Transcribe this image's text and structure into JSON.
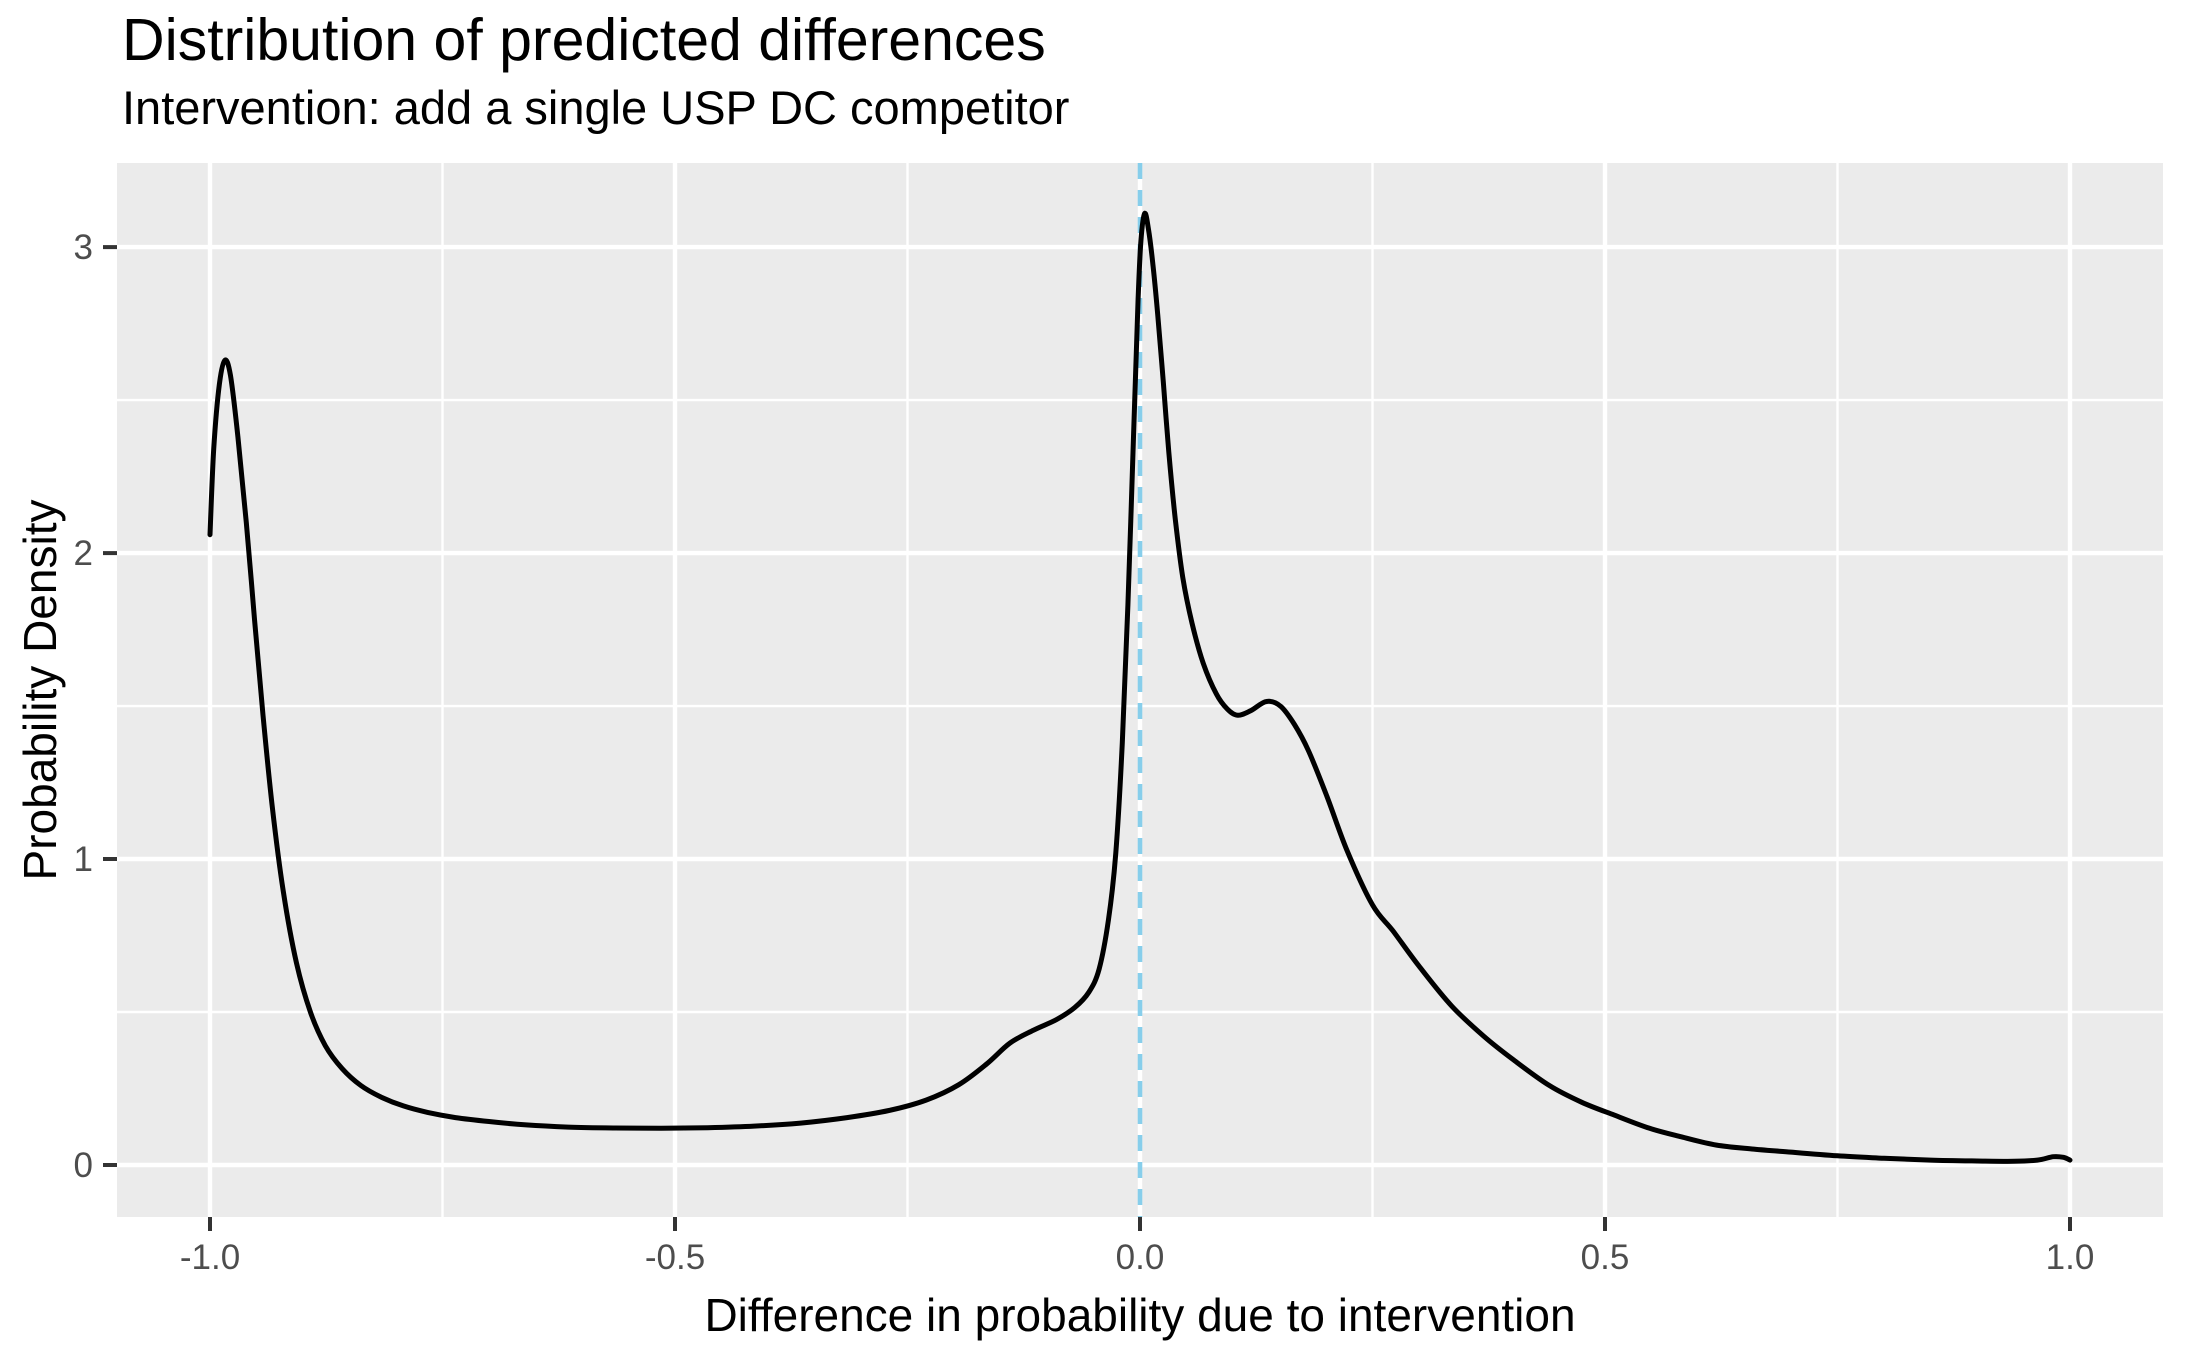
{
  "chart_data": {
    "type": "line",
    "title": "Distribution of predicted differences",
    "subtitle": "Intervention: add a single USP DC competitor",
    "xlabel": "Difference in probability due to intervention",
    "ylabel": "Probability Density",
    "xlim": [
      -1.1,
      1.1
    ],
    "ylim": [
      -0.17,
      3.275
    ],
    "grid": "on",
    "legend": "none",
    "x_ticks": {
      "values": [
        -1.0,
        -0.5,
        0.0,
        0.5,
        1.0
      ],
      "labels": [
        "-1.0",
        "-0.5",
        "0.0",
        "0.5",
        "1.0"
      ]
    },
    "y_ticks": {
      "values": [
        0,
        1,
        2,
        3
      ],
      "labels": [
        "0",
        "1",
        "2",
        "3"
      ]
    },
    "x_minor_gridlines": [
      -0.75,
      -0.25,
      0.25,
      0.75
    ],
    "y_minor_gridlines": [
      0.5,
      1.5,
      2.5
    ],
    "vline": {
      "x": 0.0,
      "style": "dashed",
      "color": "#87CEEB"
    },
    "series": [
      {
        "name": "density",
        "color": "#000000",
        "points": [
          [
            -1.0,
            2.06
          ],
          [
            -0.996,
            2.34
          ],
          [
            -0.99,
            2.55
          ],
          [
            -0.984,
            2.63
          ],
          [
            -0.978,
            2.58
          ],
          [
            -0.97,
            2.38
          ],
          [
            -0.961,
            2.1
          ],
          [
            -0.952,
            1.78
          ],
          [
            -0.943,
            1.47
          ],
          [
            -0.933,
            1.17
          ],
          [
            -0.921,
            0.89
          ],
          [
            -0.907,
            0.66
          ],
          [
            -0.892,
            0.5
          ],
          [
            -0.876,
            0.39
          ],
          [
            -0.858,
            0.315
          ],
          [
            -0.838,
            0.26
          ],
          [
            -0.816,
            0.222
          ],
          [
            -0.792,
            0.193
          ],
          [
            -0.766,
            0.172
          ],
          [
            -0.736,
            0.155
          ],
          [
            -0.7,
            0.142
          ],
          [
            -0.66,
            0.131
          ],
          [
            -0.615,
            0.124
          ],
          [
            -0.565,
            0.121
          ],
          [
            -0.515,
            0.12
          ],
          [
            -0.465,
            0.122
          ],
          [
            -0.415,
            0.127
          ],
          [
            -0.365,
            0.137
          ],
          [
            -0.315,
            0.155
          ],
          [
            -0.27,
            0.178
          ],
          [
            -0.23,
            0.212
          ],
          [
            -0.195,
            0.262
          ],
          [
            -0.165,
            0.33
          ],
          [
            -0.14,
            0.398
          ],
          [
            -0.115,
            0.44
          ],
          [
            -0.09,
            0.475
          ],
          [
            -0.07,
            0.515
          ],
          [
            -0.055,
            0.565
          ],
          [
            -0.044,
            0.64
          ],
          [
            -0.034,
            0.8
          ],
          [
            -0.026,
            1.02
          ],
          [
            -0.019,
            1.38
          ],
          [
            -0.013,
            1.83
          ],
          [
            -0.007,
            2.38
          ],
          [
            -0.002,
            2.83
          ],
          [
            0.001,
            3.02
          ],
          [
            0.005,
            3.11
          ],
          [
            0.009,
            3.06
          ],
          [
            0.014,
            2.94
          ],
          [
            0.019,
            2.78
          ],
          [
            0.025,
            2.56
          ],
          [
            0.031,
            2.33
          ],
          [
            0.038,
            2.11
          ],
          [
            0.046,
            1.92
          ],
          [
            0.056,
            1.77
          ],
          [
            0.068,
            1.64
          ],
          [
            0.082,
            1.54
          ],
          [
            0.094,
            1.49
          ],
          [
            0.105,
            1.47
          ],
          [
            0.119,
            1.485
          ],
          [
            0.136,
            1.515
          ],
          [
            0.151,
            1.5
          ],
          [
            0.166,
            1.44
          ],
          [
            0.181,
            1.355
          ],
          [
            0.201,
            1.205
          ],
          [
            0.223,
            1.025
          ],
          [
            0.25,
            0.85
          ],
          [
            0.272,
            0.765
          ],
          [
            0.3,
            0.65
          ],
          [
            0.335,
            0.52
          ],
          [
            0.37,
            0.42
          ],
          [
            0.401,
            0.345
          ],
          [
            0.44,
            0.26
          ],
          [
            0.475,
            0.205
          ],
          [
            0.51,
            0.163
          ],
          [
            0.548,
            0.12
          ],
          [
            0.582,
            0.092
          ],
          [
            0.62,
            0.065
          ],
          [
            0.66,
            0.052
          ],
          [
            0.7,
            0.042
          ],
          [
            0.75,
            0.03
          ],
          [
            0.8,
            0.022
          ],
          [
            0.85,
            0.016
          ],
          [
            0.9,
            0.013
          ],
          [
            0.94,
            0.012
          ],
          [
            0.965,
            0.016
          ],
          [
            0.982,
            0.027
          ],
          [
            0.993,
            0.025
          ],
          [
            1.0,
            0.016
          ]
        ]
      }
    ],
    "colors": {
      "panel_background": "#EBEBEB",
      "gridline": "#FFFFFF",
      "curve": "#000000",
      "vline": "#87CEEB",
      "axis_text": "#4D4D4D",
      "tick_mark": "#333333",
      "title_text": "#000000",
      "figure_background": "#FFFFFF"
    }
  }
}
